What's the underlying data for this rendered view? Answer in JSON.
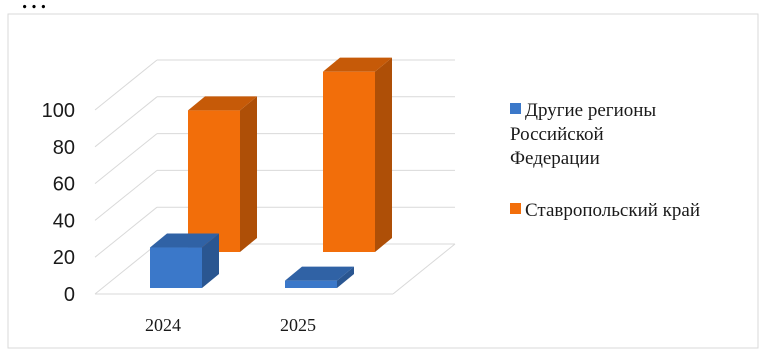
{
  "top_text": "…",
  "chart_data": {
    "type": "bar",
    "categories": [
      "2024",
      "2025"
    ],
    "series": [
      {
        "name": "Другие регионы Российской Федерации",
        "values": [
          22,
          4
        ],
        "color": "#3b78c9"
      },
      {
        "name": "Ставропольский край",
        "values": [
          77,
          98
        ],
        "color": "#f26e0a"
      }
    ],
    "ylim": [
      0,
      100
    ],
    "yticks": [
      0,
      20,
      40,
      60,
      80,
      100
    ],
    "grid": true,
    "legend_position": "right",
    "legend_lines": [
      [
        "Другие регионы",
        "Российской",
        "Федерации"
      ],
      [
        "Ставропольский край"
      ]
    ]
  }
}
